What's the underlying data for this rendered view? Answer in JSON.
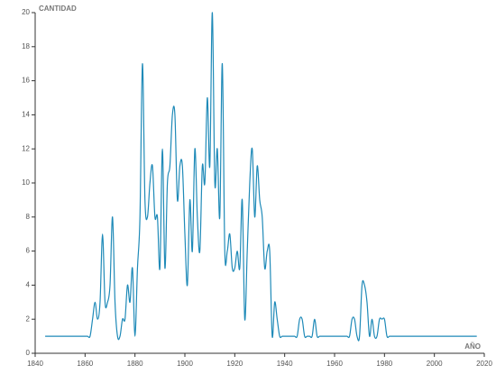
{
  "chart_data": {
    "type": "line",
    "y_label": "CANTIDAD",
    "x_label": "AÑO",
    "x": [
      1844,
      1845,
      1846,
      1847,
      1848,
      1849,
      1850,
      1851,
      1852,
      1853,
      1854,
      1855,
      1856,
      1857,
      1858,
      1859,
      1860,
      1861,
      1862,
      1863,
      1864,
      1865,
      1866,
      1867,
      1868,
      1869,
      1870,
      1871,
      1872,
      1873,
      1874,
      1875,
      1876,
      1877,
      1878,
      1879,
      1880,
      1881,
      1882,
      1883,
      1884,
      1885,
      1886,
      1887,
      1888,
      1889,
      1890,
      1891,
      1892,
      1893,
      1894,
      1895,
      1896,
      1897,
      1898,
      1899,
      1900,
      1901,
      1902,
      1903,
      1904,
      1905,
      1906,
      1907,
      1908,
      1909,
      1910,
      1911,
      1912,
      1913,
      1914,
      1915,
      1916,
      1917,
      1918,
      1919,
      1920,
      1921,
      1922,
      1923,
      1924,
      1925,
      1926,
      1927,
      1928,
      1929,
      1930,
      1931,
      1932,
      1933,
      1934,
      1935,
      1936,
      1937,
      1938,
      1939,
      1940,
      1941,
      1942,
      1943,
      1944,
      1945,
      1946,
      1947,
      1948,
      1949,
      1950,
      1951,
      1952,
      1953,
      1954,
      1955,
      1956,
      1957,
      1958,
      1959,
      1960,
      1961,
      1962,
      1963,
      1964,
      1965,
      1966,
      1967,
      1968,
      1969,
      1970,
      1971,
      1972,
      1973,
      1974,
      1975,
      1976,
      1977,
      1978,
      1979,
      1980,
      1981,
      1982,
      1983,
      1984,
      1985,
      1986,
      1987,
      1988,
      1989,
      1990,
      1991,
      1992,
      1993,
      1994,
      1995,
      1996,
      1997,
      1998,
      1999,
      2000,
      2001,
      2002,
      2003,
      2004,
      2005,
      2006,
      2007,
      2008,
      2009,
      2010,
      2011,
      2012,
      2013,
      2014,
      2015,
      2016,
      2017
    ],
    "values": [
      1,
      1,
      1,
      1,
      1,
      1,
      1,
      1,
      1,
      1,
      1,
      1,
      1,
      1,
      1,
      1,
      1,
      1,
      1,
      2,
      3,
      2,
      3,
      7,
      3,
      3,
      4,
      8,
      3,
      1,
      1,
      2,
      2,
      4,
      3,
      5,
      1,
      5,
      8,
      17,
      9,
      8,
      10,
      11,
      8,
      8,
      5,
      12,
      5,
      10,
      11,
      14,
      14,
      9,
      11,
      11,
      7,
      4,
      9,
      6,
      12,
      8,
      6,
      11,
      10,
      15,
      11,
      20,
      10,
      12,
      8,
      17,
      6,
      6,
      7,
      5,
      5,
      6,
      5,
      9,
      2,
      6,
      10,
      12,
      8,
      11,
      9,
      8,
      5,
      6,
      6,
      1,
      3,
      2,
      1,
      1,
      1,
      1,
      1,
      1,
      1,
      1,
      2,
      2,
      1,
      1,
      1,
      1,
      2,
      1,
      1,
      1,
      1,
      1,
      1,
      1,
      1,
      1,
      1,
      1,
      1,
      1,
      1,
      2,
      2,
      1,
      1,
      4,
      4,
      3,
      1,
      2,
      1,
      1,
      2,
      2,
      2,
      1,
      1,
      1,
      1,
      1,
      1,
      1,
      1,
      1,
      1,
      1,
      1,
      1,
      1,
      1,
      1,
      1,
      1,
      1,
      1,
      1,
      1,
      1,
      1,
      1,
      1,
      1,
      1,
      1,
      1,
      1,
      1,
      1,
      1,
      1,
      1,
      1
    ],
    "color": "#1f8ab8",
    "xlim": [
      1840,
      2020
    ],
    "xticks": [
      1840,
      1860,
      1880,
      1900,
      1920,
      1940,
      1960,
      1980,
      2000,
      2020
    ],
    "ylim": [
      0,
      20
    ],
    "yticks": [
      0,
      2,
      4,
      6,
      8,
      10,
      12,
      14,
      16,
      18,
      20
    ]
  }
}
